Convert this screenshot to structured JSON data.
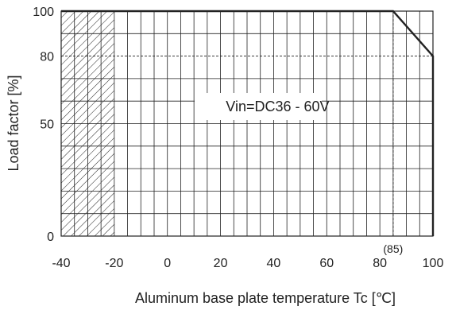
{
  "chart_data": {
    "type": "line",
    "xlabel": "Aluminum base plate temperature Tc [℃]",
    "ylabel": "Load factor [%]",
    "xlim": [
      -40,
      100
    ],
    "ylim": [
      0,
      100
    ],
    "x_ticks": [
      -40,
      -20,
      0,
      20,
      40,
      60,
      80,
      100
    ],
    "y_ticks": [
      0,
      50,
      80,
      100
    ],
    "grid": true,
    "hatched_region": [
      -40,
      -20
    ],
    "series": [
      {
        "x": [
          -40,
          85,
          100,
          100
        ],
        "y": [
          100,
          100,
          80,
          0
        ]
      }
    ],
    "reference_lines": [
      {
        "axis": "y",
        "value": 80,
        "style": "dashed"
      },
      {
        "axis": "x",
        "value": 85,
        "style": "dashed"
      }
    ],
    "annotations": [
      {
        "text": "Vin=DC36 - 60V",
        "x": 40,
        "y": 62
      },
      {
        "text": "(85)",
        "x": 85,
        "y": 0
      }
    ],
    "colors": {
      "line": "#222222",
      "grid": "#222222",
      "background": "#ffffff"
    }
  }
}
